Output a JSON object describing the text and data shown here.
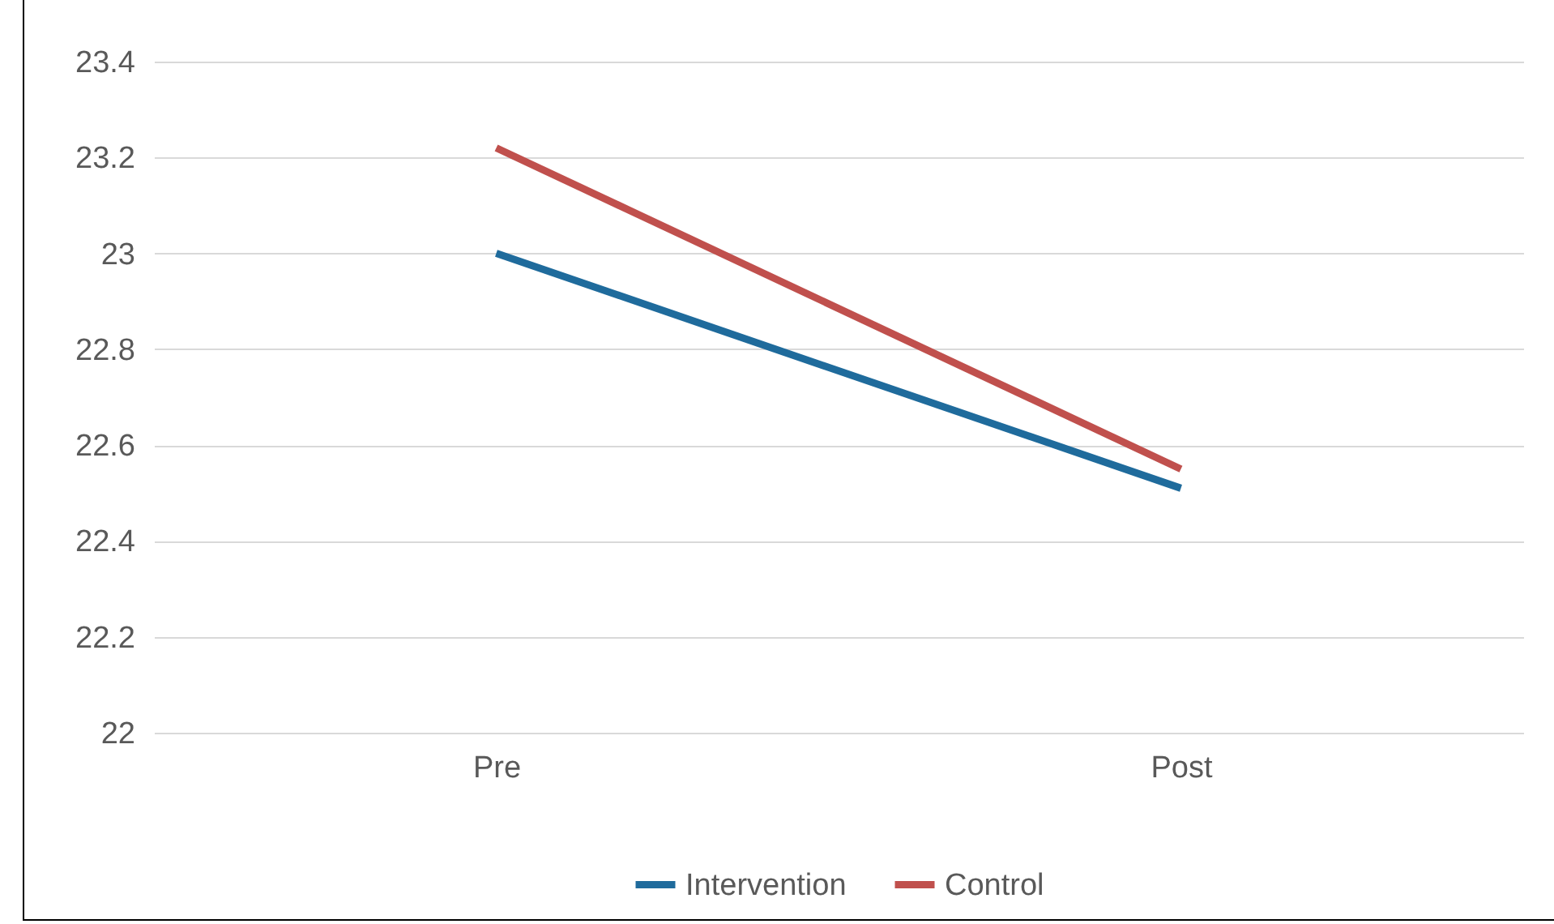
{
  "chart_data": {
    "type": "line",
    "categories": [
      "Pre",
      "Post"
    ],
    "series": [
      {
        "name": "Intervention",
        "color": "#1f6b9c",
        "values": [
          23.0,
          22.51
        ]
      },
      {
        "name": "Control",
        "color": "#c0504d",
        "values": [
          23.22,
          22.55
        ]
      }
    ],
    "ylim": [
      22,
      23.4
    ],
    "yticks": [
      22,
      22.2,
      22.4,
      22.6,
      22.8,
      23,
      23.2,
      23.4
    ],
    "grid": "y",
    "legend": "bottom"
  }
}
